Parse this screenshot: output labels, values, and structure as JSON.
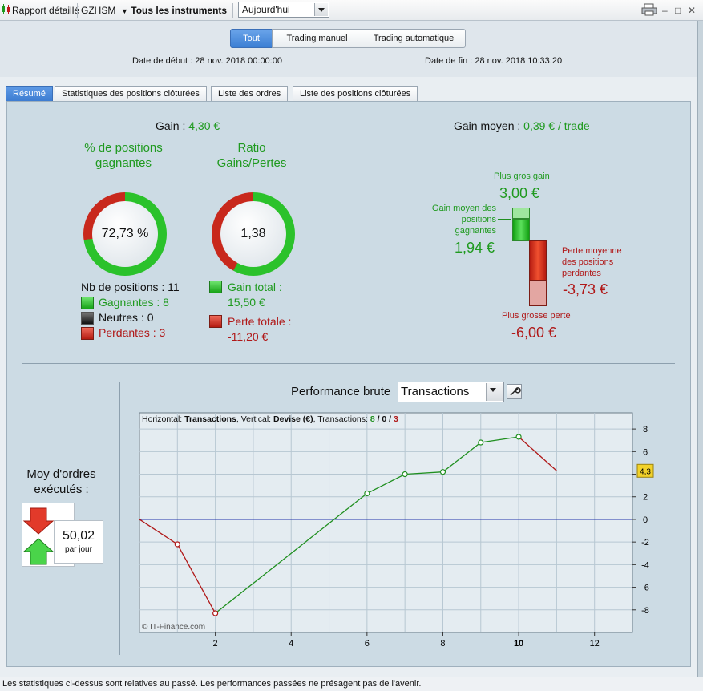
{
  "toolbar": {
    "report_label": "Rapport détaillé",
    "symbol": "GZHSM",
    "instruments_label": "Tous les instruments",
    "period_value": "Aujourd'hui"
  },
  "header": {
    "segments": [
      "Tout",
      "Trading manuel",
      "Trading automatique"
    ],
    "start_label": "Date de début :",
    "start_value": "28 nov. 2018 00:00:00",
    "end_label": "Date de fin :",
    "end_value": "28 nov. 2018 10:33:20"
  },
  "tabs": [
    "Résumé",
    "Statistiques des positions clôturées",
    "Liste des ordres",
    "Liste des positions clôturées"
  ],
  "summary": {
    "gain_label": "Gain :",
    "gain_value": "4,30 €",
    "win_pct_title": "% de positions gagnantes",
    "win_pct_value": "72,73 %",
    "win_fraction": 0.7273,
    "ratio_title": "Ratio Gains/Pertes",
    "ratio_value": "1,38",
    "ratio_win_fraction": 0.58,
    "positions_label": "Nb de positions : 11",
    "winners_label": "Gagnantes : 8",
    "neutral_label": "Neutres : 0",
    "losers_label": "Perdantes : 3",
    "total_gain_label": "Gain total :",
    "total_gain_value": "15,50 €",
    "total_loss_label": "Perte totale :",
    "total_loss_value": "-11,20 €"
  },
  "avg": {
    "title_label": "Gain moyen :",
    "title_value": "0,39 € / trade",
    "biggest_gain_label": "Plus gros gain",
    "biggest_gain_value": "3,00 €",
    "avg_win_label": "Gain moyen des positions gagnantes",
    "avg_win_value": "1,94 €",
    "avg_loss_label": "Perte moyenne des positions perdantes",
    "avg_loss_value": "-3,73 €",
    "biggest_loss_label": "Plus grosse perte",
    "biggest_loss_value": "-6,00 €"
  },
  "orders": {
    "title": "Moy d'ordres exécutés :",
    "value": "50,02",
    "unit": "par jour"
  },
  "performance": {
    "title": "Performance brute",
    "select_value": "Transactions",
    "legend_h_label": "Horizontal:",
    "legend_h_value": "Transactions",
    "legend_v_label": ", Vertical:",
    "legend_v_value": "Devise (€)",
    "legend_t_label": ", Transactions:",
    "legend_t_win": "8",
    "legend_t_neutral": "0",
    "legend_t_loss": "3",
    "legend_sep": "/",
    "copyright": "© IT-Finance.com",
    "current_value_label": "4,3"
  },
  "chart_data": {
    "type": "line",
    "x": [
      0,
      1,
      2,
      7,
      8,
      9,
      10,
      11
    ],
    "y": [
      0,
      -2.2,
      -8.3,
      4.0,
      4.2,
      6.8,
      7.3,
      4.3
    ],
    "point_markers_x": [
      1,
      2,
      6,
      7,
      8,
      9,
      10
    ],
    "point_markers_y": [
      -2.2,
      -8.3,
      2.3,
      4.0,
      4.2,
      6.8,
      7.3
    ],
    "segments": [
      {
        "x": [
          0,
          1,
          2
        ],
        "y": [
          0,
          -2.2,
          -8.3
        ],
        "color": "#b01818"
      },
      {
        "x": [
          2,
          6,
          7,
          8,
          9,
          10
        ],
        "y": [
          -8.3,
          2.3,
          4.0,
          4.2,
          6.8,
          7.3
        ],
        "color": "#1f8f1f"
      },
      {
        "x": [
          10,
          11
        ],
        "y": [
          7.3,
          4.3
        ],
        "color": "#b01818"
      }
    ],
    "xlim": [
      0,
      13
    ],
    "ylim": [
      -10,
      9
    ],
    "x_ticks": [
      2,
      4,
      6,
      8,
      10,
      12
    ],
    "y_ticks": [
      8,
      6,
      4,
      2,
      0,
      -2,
      -4,
      -6,
      -8
    ],
    "grid": true
  },
  "status": {
    "text": "Les statistiques ci-dessus sont relatives au passé. Les performances passées ne présagent pas de l'avenir."
  }
}
